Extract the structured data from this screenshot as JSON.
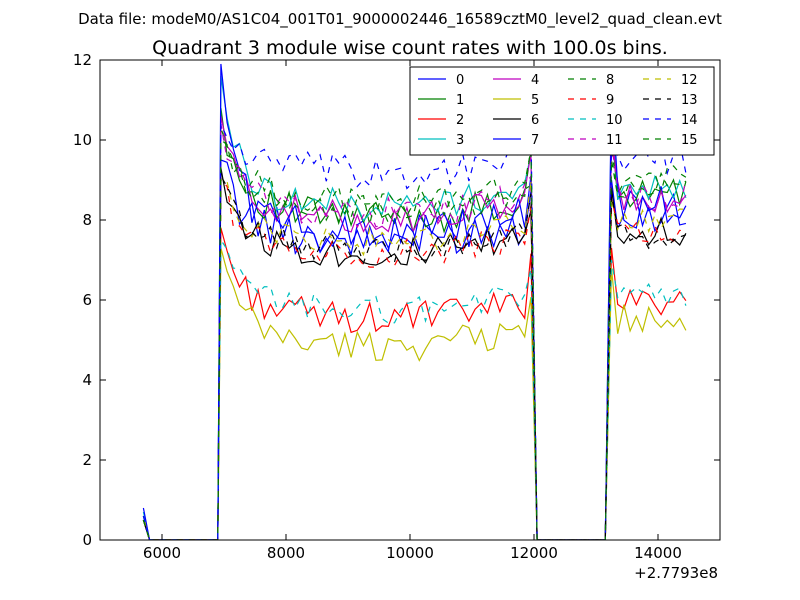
{
  "suptitle": "Data file: modeM0/AS1C04_001T01_9000002446_16589cztM0_level2_quad_clean.evt",
  "chart_data": {
    "type": "line",
    "title": "Quadrant 3 module wise count rates with 100.0s bins.",
    "xlabel": "",
    "ylabel": "",
    "xlim": [
      5000,
      15000
    ],
    "ylim": [
      0,
      12
    ],
    "xticks": [
      6000,
      8000,
      10000,
      12000,
      14000
    ],
    "xtick_labels": [
      "6000",
      "8000",
      "10000",
      "12000",
      "14000"
    ],
    "yticks": [
      0,
      2,
      4,
      6,
      8,
      10,
      12
    ],
    "ytick_labels": [
      "0",
      "2",
      "4",
      "6",
      "8",
      "10",
      "12"
    ],
    "x_offset_label": "+2.7793e8",
    "grid": false,
    "legend": {
      "placement": "top-right",
      "columns": 4
    },
    "segments": [
      {
        "x_start": 5700,
        "x_end": 6900
      },
      {
        "x_start": 6950,
        "x_end": 12050
      },
      {
        "x_start": 13150,
        "x_end": 14500
      }
    ],
    "step": 100,
    "series": [
      {
        "name": "0",
        "color": "#0000ff",
        "dash": "solid",
        "start": 0.6,
        "peak": 9.5,
        "level": 8.0,
        "seg3": 8.2,
        "noise": 0.55
      },
      {
        "name": "1",
        "color": "#008000",
        "dash": "solid",
        "start": 0.5,
        "peak": 10.8,
        "level": 8.5,
        "seg3": 8.6,
        "noise": 0.45
      },
      {
        "name": "2",
        "color": "#ff0000",
        "dash": "solid",
        "start": 0.6,
        "peak": 7.8,
        "level": 6.0,
        "seg3": 6.0,
        "noise": 0.4
      },
      {
        "name": "3",
        "color": "#00bfbf",
        "dash": "solid",
        "start": 0.7,
        "peak": 11.6,
        "level": 8.8,
        "seg3": 8.9,
        "noise": 0.4
      },
      {
        "name": "4",
        "color": "#bf00bf",
        "dash": "solid",
        "start": 0.5,
        "peak": 10.6,
        "level": 8.5,
        "seg3": 8.6,
        "noise": 0.4
      },
      {
        "name": "5",
        "color": "#bfbf00",
        "dash": "solid",
        "start": 0.6,
        "peak": 7.3,
        "level": 5.3,
        "seg3": 5.5,
        "noise": 0.4
      },
      {
        "name": "6",
        "color": "#000000",
        "dash": "solid",
        "start": 0.5,
        "peak": 9.3,
        "level": 7.6,
        "seg3": 7.7,
        "noise": 0.4
      },
      {
        "name": "7",
        "color": "#0000ff",
        "dash": "solid",
        "start": 0.8,
        "peak": 11.9,
        "level": 8.1,
        "seg3": 8.3,
        "noise": 0.55
      },
      {
        "name": "8",
        "color": "#008000",
        "dash": "dashed",
        "start": 0.5,
        "peak": 10.3,
        "level": 8.9,
        "seg3": 9.0,
        "noise": 0.4
      },
      {
        "name": "9",
        "color": "#ff0000",
        "dash": "dashed",
        "start": 0.5,
        "peak": 9.0,
        "level": 7.6,
        "seg3": 7.7,
        "noise": 0.35
      },
      {
        "name": "10",
        "color": "#00bfbf",
        "dash": "dashed",
        "start": 0.6,
        "peak": 7.5,
        "level": 6.2,
        "seg3": 6.2,
        "noise": 0.35
      },
      {
        "name": "11",
        "color": "#bf00bf",
        "dash": "dashed",
        "start": 0.5,
        "peak": 10.4,
        "level": 8.6,
        "seg3": 8.6,
        "noise": 0.4
      },
      {
        "name": "12",
        "color": "#bfbf00",
        "dash": "dashed",
        "start": 0.5,
        "peak": 9.0,
        "level": 7.9,
        "seg3": 8.0,
        "noise": 0.35
      },
      {
        "name": "13",
        "color": "#000000",
        "dash": "dashed",
        "start": 0.5,
        "peak": 9.1,
        "level": 7.7,
        "seg3": 7.6,
        "noise": 0.35
      },
      {
        "name": "14",
        "color": "#0000ff",
        "dash": "dashed",
        "start": 0.6,
        "peak": 10.4,
        "level": 9.6,
        "seg3": 9.6,
        "noise": 0.45
      },
      {
        "name": "15",
        "color": "#008000",
        "dash": "dashed",
        "start": 0.5,
        "peak": 10.0,
        "level": 8.7,
        "seg3": 8.8,
        "noise": 0.4
      }
    ]
  }
}
